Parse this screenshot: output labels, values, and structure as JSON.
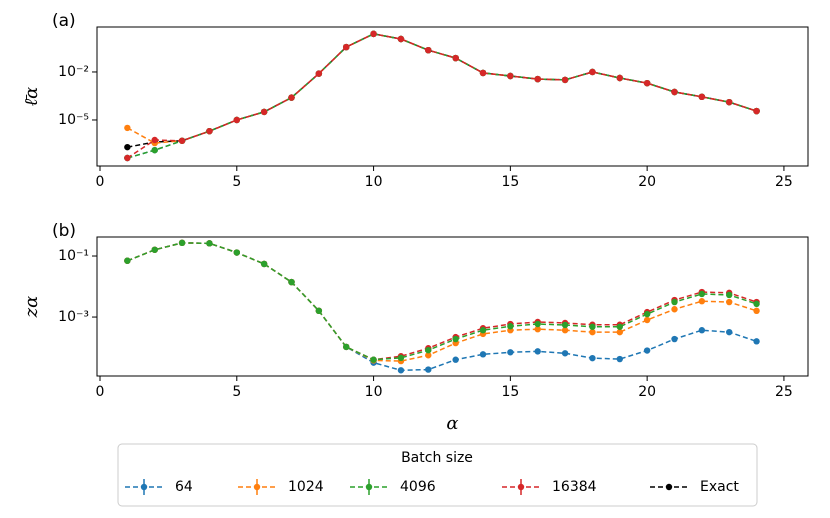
{
  "chart_data": [
    {
      "type": "line",
      "title": "(a)",
      "xlabel": "α",
      "ylabel": "ℓ̄α",
      "yscale": "log",
      "x": [
        1,
        2,
        3,
        4,
        5,
        6,
        7,
        8,
        9,
        10,
        11,
        12,
        13,
        14,
        15,
        16,
        17,
        18,
        19,
        20,
        21,
        22,
        23,
        24
      ],
      "xlim": [
        -0.11,
        25.88
      ],
      "xticks": [
        0,
        5,
        10,
        15,
        20,
        25
      ],
      "ylim": [
        1.33e-08,
        6.46
      ],
      "yticks": [
        {
          "value": 0.01,
          "label": "10⁻²"
        },
        {
          "value": 1e-05,
          "label": "10⁻⁵"
        }
      ],
      "legend": {
        "title": "Batch size",
        "position": "lower center"
      },
      "series": [
        {
          "name": "64",
          "color": "#1f77b4",
          "values": [
            4.2e-08,
            1.3e-07,
            5e-07,
            2e-06,
            1e-05,
            3.2e-05,
            0.00025,
            0.0079,
            0.36,
            2.4,
            1.15,
            0.23,
            0.074,
            0.0087,
            0.0056,
            0.0036,
            0.0032,
            0.01,
            0.0042,
            0.002,
            0.00056,
            0.00028,
            0.00013,
            3.6e-05
          ]
        },
        {
          "name": "1024",
          "color": "#ff7f0e",
          "values": [
            3.2e-06,
            3.6e-07,
            5e-07,
            2e-06,
            1e-05,
            3.2e-05,
            0.00025,
            0.0079,
            0.36,
            2.4,
            1.15,
            0.23,
            0.074,
            0.0087,
            0.0056,
            0.0036,
            0.0032,
            0.01,
            0.0042,
            0.002,
            0.00056,
            0.00028,
            0.00013,
            3.6e-05
          ]
        },
        {
          "name": "4096",
          "color": "#2ca02c",
          "values": [
            4.2e-08,
            1.3e-07,
            5e-07,
            2e-06,
            1e-05,
            3.2e-05,
            0.00025,
            0.0079,
            0.36,
            2.4,
            1.15,
            0.23,
            0.074,
            0.0087,
            0.0056,
            0.0036,
            0.0032,
            0.01,
            0.0042,
            0.002,
            0.00056,
            0.00028,
            0.00013,
            3.6e-05
          ]
        },
        {
          "name": "16384",
          "color": "#d62728",
          "values": [
            4.2e-08,
            5.6e-07,
            5e-07,
            2e-06,
            1e-05,
            3.2e-05,
            0.00025,
            0.0079,
            0.36,
            2.4,
            1.15,
            0.23,
            0.074,
            0.0087,
            0.0056,
            0.0036,
            0.0032,
            0.01,
            0.0042,
            0.002,
            0.00056,
            0.00028,
            0.00013,
            3.6e-05
          ]
        },
        {
          "name": "Exact",
          "color": "#000000",
          "values": [
            2e-07,
            4.2e-07,
            5e-07,
            2e-06,
            1e-05,
            3.2e-05,
            0.00025,
            0.0079,
            0.36,
            2.4,
            1.15,
            0.23,
            0.074,
            0.0087,
            0.0056,
            0.0036,
            0.0032,
            0.01,
            0.0042,
            0.002,
            0.00056,
            0.00028,
            0.00013,
            3.6e-05
          ]
        }
      ]
    },
    {
      "type": "line",
      "title": "(b)",
      "xlabel": "α",
      "ylabel": "zα",
      "yscale": "log",
      "x": [
        1,
        2,
        3,
        4,
        5,
        6,
        7,
        8,
        9,
        10,
        11,
        12,
        13,
        14,
        15,
        16,
        17,
        18,
        19,
        20,
        21,
        22,
        23,
        24
      ],
      "xlim": [
        -0.11,
        25.88
      ],
      "xticks": [
        0,
        5,
        10,
        15,
        20,
        25
      ],
      "ylim": [
        1.17e-05,
        0.42
      ],
      "yticks": [
        {
          "value": 0.1,
          "label": "10⁻¹"
        },
        {
          "value": 0.001,
          "label": "10⁻³"
        }
      ],
      "series": [
        {
          "name": "64",
          "color": "#1f77b4",
          "values": [
            0.07,
            0.16,
            0.27,
            0.26,
            0.13,
            0.055,
            0.014,
            0.0016,
            0.000105,
            3.2e-05,
            1.8e-05,
            1.9e-05,
            4e-05,
            6e-05,
            7e-05,
            7.5e-05,
            6.5e-05,
            4.5e-05,
            4.2e-05,
            8e-05,
            0.00019,
            0.00037,
            0.00032,
            0.00016
          ]
        },
        {
          "name": "1024",
          "color": "#ff7f0e",
          "values": [
            0.07,
            0.16,
            0.27,
            0.26,
            0.13,
            0.055,
            0.014,
            0.0016,
            0.000105,
            3.8e-05,
            3.6e-05,
            5.6e-05,
            0.00014,
            0.00028,
            0.00037,
            0.0004,
            0.00037,
            0.00032,
            0.00032,
            0.0008,
            0.0018,
            0.0033,
            0.0031,
            0.0016
          ]
        },
        {
          "name": "4096",
          "color": "#2ca02c",
          "values": [
            0.07,
            0.16,
            0.27,
            0.26,
            0.13,
            0.055,
            0.014,
            0.0016,
            0.000105,
            4e-05,
            4.6e-05,
            8.2e-05,
            0.00019,
            0.00037,
            0.0005,
            0.00059,
            0.00055,
            0.00048,
            0.00048,
            0.00125,
            0.0031,
            0.0057,
            0.0053,
            0.0027
          ]
        },
        {
          "name": "16384",
          "color": "#d62728",
          "values": [
            0.07,
            0.16,
            0.27,
            0.26,
            0.13,
            0.055,
            0.014,
            0.0016,
            0.000105,
            4e-05,
            5.2e-05,
            9.5e-05,
            0.00022,
            0.00043,
            0.00059,
            0.00069,
            0.00064,
            0.00056,
            0.00056,
            0.00145,
            0.0036,
            0.0066,
            0.0062,
            0.0031
          ]
        }
      ]
    }
  ]
}
